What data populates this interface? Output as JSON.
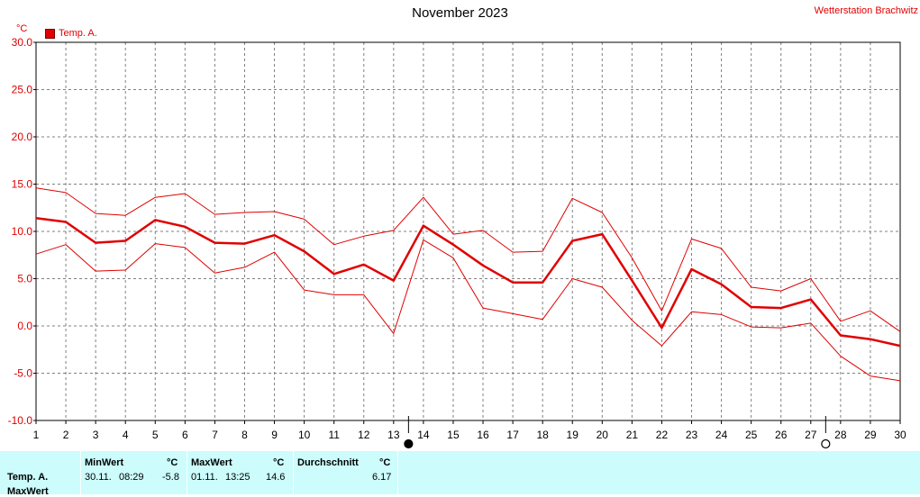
{
  "header": {
    "title": "November 2023",
    "station": "Wetterstation Brachwitz",
    "unit": "°C"
  },
  "colors": {
    "series": "#e00000",
    "grid": "#808080",
    "table_bg": "#ccfcfc"
  },
  "chart_data": {
    "type": "line",
    "title": "November 2023",
    "ylabel": "°C",
    "xlabel": "",
    "ylim": [
      -10,
      30
    ],
    "xlim": [
      1,
      30
    ],
    "grid": true,
    "legend_position": "top-left",
    "x": [
      1,
      2,
      3,
      4,
      5,
      6,
      7,
      8,
      9,
      10,
      11,
      12,
      13,
      14,
      15,
      16,
      17,
      18,
      19,
      20,
      21,
      22,
      23,
      24,
      25,
      26,
      27,
      28,
      29,
      30
    ],
    "x_tick_labels": [
      "1",
      "2",
      "3",
      "4",
      "5",
      "6",
      "7",
      "8",
      "9",
      "10",
      "11",
      "12",
      "13",
      "14",
      "15",
      "16",
      "17",
      "18",
      "19",
      "20",
      "21",
      "22",
      "23",
      "24",
      "25",
      "26",
      "27",
      "28",
      "29",
      "30"
    ],
    "y_tick_labels": [
      "30.0",
      "25.0",
      "20.0",
      "15.0",
      "10.0",
      "5.0",
      "0.0",
      "-5.0",
      "-10.0"
    ],
    "series": [
      {
        "name": "Temp. A.",
        "role": "mean",
        "values": [
          11.4,
          11.0,
          8.8,
          9.0,
          11.2,
          10.5,
          8.8,
          8.7,
          9.6,
          7.9,
          5.5,
          6.5,
          4.8,
          10.6,
          8.6,
          6.4,
          4.6,
          4.6,
          9.0,
          9.7,
          4.8,
          -0.2,
          6.0,
          4.4,
          2.0,
          1.9,
          2.8,
          -1.0,
          -1.4,
          -2.1
        ]
      },
      {
        "role": "max",
        "values": [
          14.6,
          14.1,
          11.9,
          11.7,
          13.6,
          14.0,
          11.8,
          12.0,
          12.1,
          11.3,
          8.6,
          9.5,
          10.1,
          13.6,
          9.7,
          10.1,
          7.8,
          7.9,
          13.5,
          12.0,
          7.2,
          1.6,
          9.2,
          8.2,
          4.1,
          3.7,
          5.0,
          0.5,
          1.6,
          -0.6
        ]
      },
      {
        "role": "min",
        "values": [
          7.6,
          8.6,
          5.8,
          5.9,
          8.7,
          8.3,
          5.6,
          6.2,
          7.8,
          3.8,
          3.3,
          3.3,
          -0.8,
          9.1,
          7.2,
          1.9,
          1.3,
          0.7,
          5.0,
          4.1,
          0.6,
          -2.1,
          1.5,
          1.2,
          -0.1,
          -0.2,
          0.3,
          -3.2,
          -5.3,
          -5.8
        ]
      }
    ],
    "moon_markers": [
      {
        "day": 13,
        "phase": "new-moon"
      },
      {
        "day": 27,
        "phase": "full-moon"
      }
    ]
  },
  "table": {
    "row_label": "Temp. A.",
    "row2_label": "MaxWert",
    "min_header": "MinWert",
    "min_unit": "°C",
    "min_date": "30.11.",
    "min_time": "08:29",
    "min_value": "-5.8",
    "max_header": "MaxWert",
    "max_unit": "°C",
    "max_date": "01.11.",
    "max_time": "13:25",
    "max_value": "14.6",
    "avg_header": "Durchschnitt",
    "avg_unit": "°C",
    "avg_value": "6.17"
  }
}
